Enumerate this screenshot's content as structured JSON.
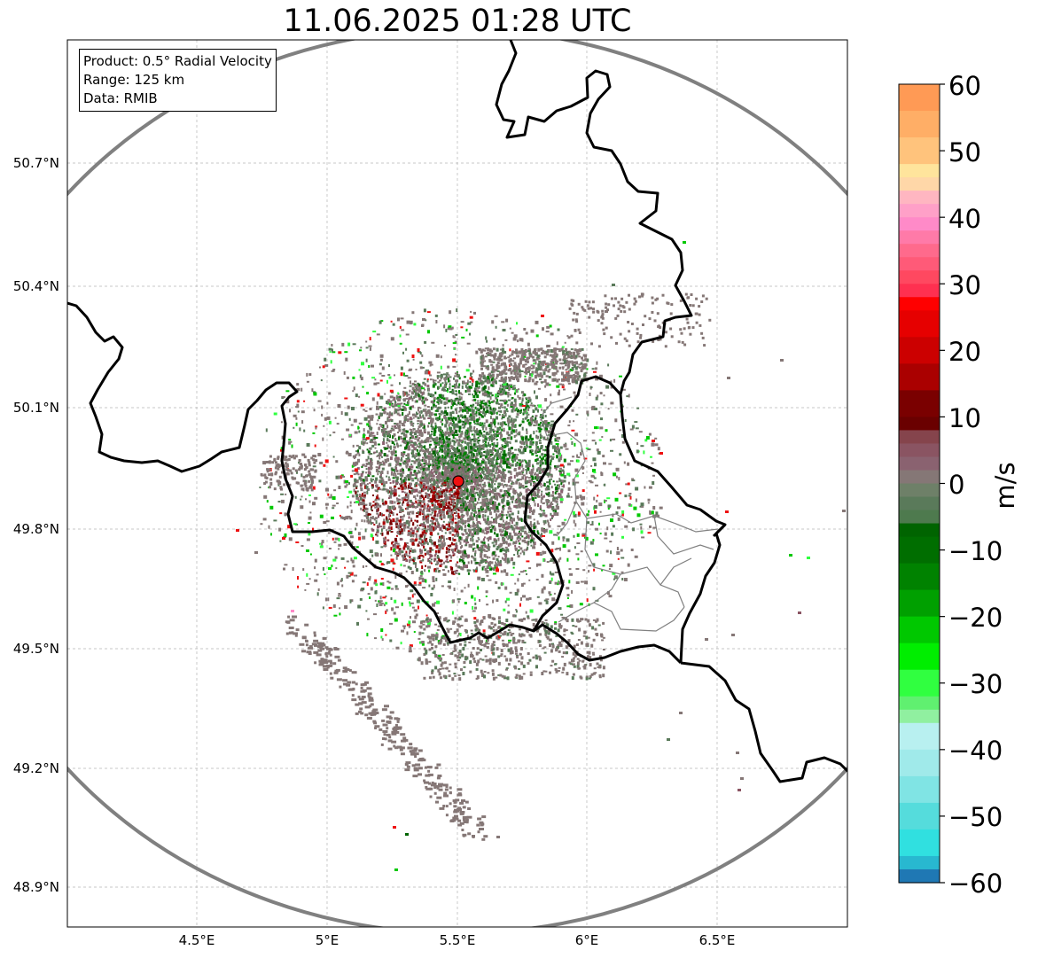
{
  "title": "11.06.2025 01:28 UTC",
  "info_box": {
    "product": "Product: 0.5° Radial Velocity",
    "range": "Range: 125 km",
    "data": "Data: RMIB"
  },
  "axes": {
    "lat_ticks": [
      "50.7°N",
      "50.4°N",
      "50.1°N",
      "49.8°N",
      "49.5°N",
      "49.2°N",
      "48.9°N"
    ],
    "lon_ticks": [
      "4.5°E",
      "5°E",
      "5.5°E",
      "6°E",
      "6.5°E"
    ],
    "grid": true
  },
  "colorbar": {
    "unit": "m/s",
    "range": [
      -60,
      60
    ],
    "ticks": [
      "60",
      "50",
      "40",
      "30",
      "20",
      "10",
      "0",
      "−10",
      "−20",
      "−30",
      "−40",
      "−50",
      "−60"
    ],
    "colors": {
      "orange": "#ff9a55",
      "peach": "#ffc37c",
      "light_yellow": "#ffe49c",
      "pink_light": "#ffb6c1",
      "pink": "#ff8ac8",
      "rose": "#ff5a78",
      "red": "#ff0000",
      "dark_red": "#7a0000",
      "mauve": "#8a6270",
      "grey": "#857776",
      "grey_green": "#5a7a5a",
      "dark_green": "#006400",
      "green": "#00c800",
      "bright_green": "#00ee00",
      "light_green": "#90f0a0",
      "light_cyan": "#b8f0f0",
      "cyan": "#30e0e0",
      "blue": "#1f78b4"
    }
  },
  "map_elements": {
    "radar_site": "radar-site-marker",
    "range_ring": "range-ring",
    "borders": "country-borders",
    "regions": "region-borders"
  }
}
